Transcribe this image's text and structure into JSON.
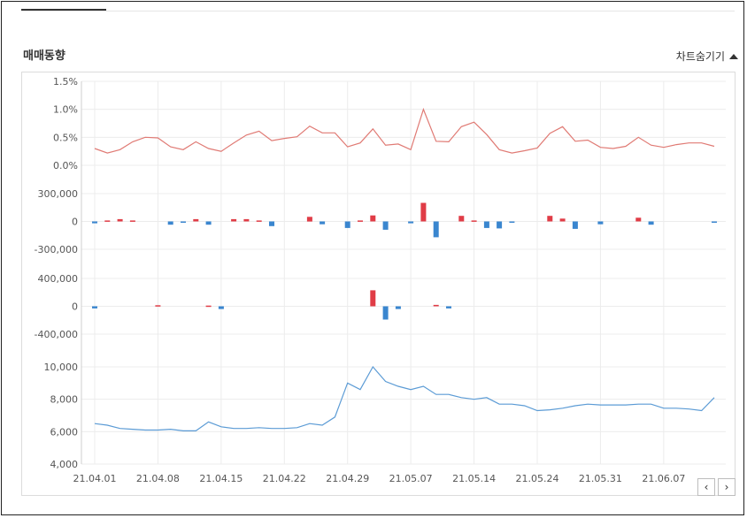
{
  "header": {
    "title": "매매동향",
    "toggle_label": "차트숨기기"
  },
  "icons": {
    "toggle": "triangle-up-icon",
    "prev": "chevron-left-icon",
    "next": "chevron-right-icon"
  },
  "nav": {
    "prev_label": "‹",
    "next_label": "›"
  },
  "colors": {
    "line_red": "#e07a74",
    "line_blue": "#5b9bd5",
    "bar_up": "#e03c46",
    "bar_down": "#3a86cf",
    "grid": "#ececec",
    "axis_text": "#555555"
  },
  "chart_data": {
    "type": "line",
    "x_tick_labels": [
      "21.04.01",
      "21.04.08",
      "21.04.15",
      "21.04.22",
      "21.04.29",
      "21.05.07",
      "21.05.14",
      "21.05.24",
      "21.05.31",
      "21.06.07"
    ],
    "x_tick_index": [
      0,
      5,
      10,
      15,
      20,
      25,
      30,
      35,
      40,
      45
    ],
    "n_points": 50,
    "panels": [
      {
        "type": "line",
        "ylim": [
          0,
          1.5
        ],
        "yticks": [
          "1.5%",
          "1.0%",
          "0.5%",
          "0.0%"
        ],
        "ytick_values": [
          1.5,
          1.0,
          0.5,
          0.0
        ],
        "values": [
          0.3,
          0.22,
          0.28,
          0.42,
          0.5,
          0.49,
          0.33,
          0.28,
          0.42,
          0.3,
          0.25,
          0.4,
          0.54,
          0.61,
          0.44,
          0.48,
          0.51,
          0.7,
          0.58,
          0.58,
          0.33,
          0.4,
          0.65,
          0.36,
          0.38,
          0.28,
          1.0,
          0.43,
          0.42,
          0.69,
          0.77,
          0.55,
          0.28,
          0.22,
          0.26,
          0.31,
          0.57,
          0.69,
          0.43,
          0.45,
          0.32,
          0.3,
          0.34,
          0.5,
          0.36,
          0.32,
          0.37,
          0.4,
          0.4,
          0.34
        ]
      },
      {
        "type": "bar",
        "ylim": [
          -300000,
          300000
        ],
        "yticks": [
          "300,000",
          "0",
          "-300,000"
        ],
        "ytick_values": [
          300000,
          0,
          -300000
        ],
        "values": [
          -20000,
          10000,
          25000,
          10000,
          0,
          0,
          -35000,
          -10000,
          25000,
          -35000,
          0,
          25000,
          25000,
          10000,
          -50000,
          0,
          0,
          50000,
          -30000,
          0,
          -70000,
          10000,
          65000,
          -90000,
          0,
          -20000,
          200000,
          -170000,
          0,
          60000,
          10000,
          -70000,
          -75000,
          -10000,
          0,
          0,
          60000,
          30000,
          -80000,
          0,
          -30000,
          0,
          0,
          40000,
          -35000,
          0,
          0,
          0,
          0,
          -10000
        ]
      },
      {
        "type": "bar",
        "ylim": [
          -400000,
          400000
        ],
        "yticks": [
          "400,000",
          "0",
          "-400,000"
        ],
        "ytick_values": [
          400000,
          0,
          -400000
        ],
        "values": [
          -30000,
          0,
          0,
          0,
          0,
          15000,
          0,
          0,
          0,
          10000,
          -40000,
          0,
          0,
          0,
          0,
          0,
          0,
          0,
          0,
          0,
          0,
          0,
          230000,
          -190000,
          -40000,
          0,
          0,
          20000,
          -30000,
          0,
          0,
          0,
          0,
          0,
          0,
          0,
          0,
          0,
          0,
          0,
          0,
          0,
          0,
          0,
          0,
          0,
          0,
          0,
          0,
          0
        ]
      },
      {
        "type": "line",
        "ylim": [
          4000,
          10000
        ],
        "yticks": [
          "10,000",
          "8,000",
          "6,000",
          "4,000"
        ],
        "ytick_values": [
          10000,
          8000,
          6000,
          4000
        ],
        "values": [
          6500,
          6400,
          6200,
          6150,
          6100,
          6100,
          6150,
          6050,
          6050,
          6600,
          6300,
          6200,
          6200,
          6250,
          6200,
          6200,
          6250,
          6500,
          6400,
          6900,
          9000,
          8600,
          10000,
          9100,
          8800,
          8600,
          8800,
          8300,
          8300,
          8100,
          8000,
          8100,
          7700,
          7700,
          7600,
          7300,
          7350,
          7450,
          7600,
          7700,
          7650,
          7650,
          7650,
          7700,
          7700,
          7450,
          7450,
          7400,
          7300,
          8100
        ]
      }
    ],
    "grid": true,
    "legend": "none"
  }
}
